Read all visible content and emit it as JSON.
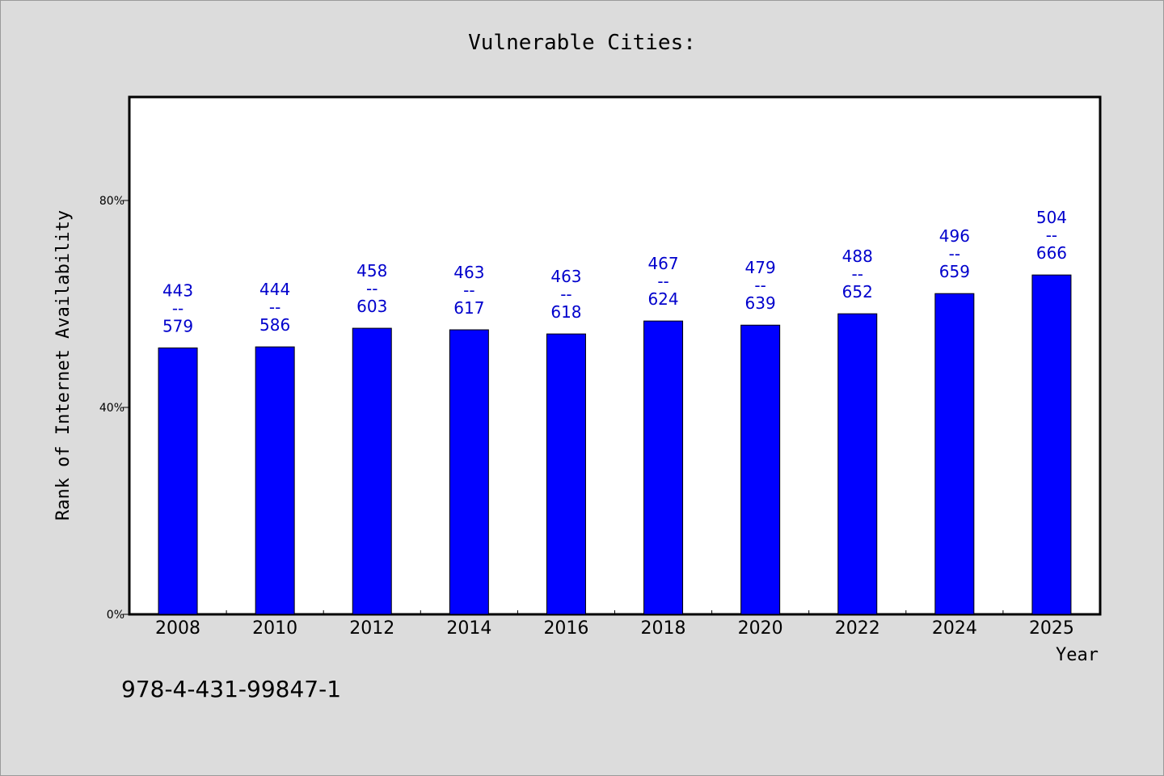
{
  "chart_data": {
    "type": "bar",
    "title": "Vulnerable Cities:",
    "xlabel": "Year",
    "ylabel": "Rank of Internet Availability",
    "ylim": [
      0,
      100
    ],
    "yticks": [
      {
        "value": 0,
        "label": "0%"
      },
      {
        "value": 40,
        "label": "40%"
      },
      {
        "value": 80,
        "label": "80%"
      }
    ],
    "grid": false,
    "bar_color": "#0000ff",
    "label_color": "#0000cc",
    "categories": [
      "2008",
      "2010",
      "2012",
      "2014",
      "2016",
      "2018",
      "2020",
      "2022",
      "2024",
      "2025"
    ],
    "values": [
      51.5,
      51.7,
      55.3,
      55.0,
      54.2,
      56.7,
      55.9,
      58.1,
      62.0,
      65.6
    ],
    "data_labels": [
      {
        "top": "443",
        "sep": "--",
        "bottom": "579"
      },
      {
        "top": "444",
        "sep": "--",
        "bottom": "586"
      },
      {
        "top": "458",
        "sep": "--",
        "bottom": "603"
      },
      {
        "top": "463",
        "sep": "--",
        "bottom": "617"
      },
      {
        "top": "463",
        "sep": "--",
        "bottom": "618"
      },
      {
        "top": "467",
        "sep": "--",
        "bottom": "624"
      },
      {
        "top": "479",
        "sep": "--",
        "bottom": "639"
      },
      {
        "top": "488",
        "sep": "--",
        "bottom": "652"
      },
      {
        "top": "496",
        "sep": "--",
        "bottom": "659"
      },
      {
        "top": "504",
        "sep": "--",
        "bottom": "666"
      }
    ]
  },
  "footnote": "978-4-431-99847-1"
}
